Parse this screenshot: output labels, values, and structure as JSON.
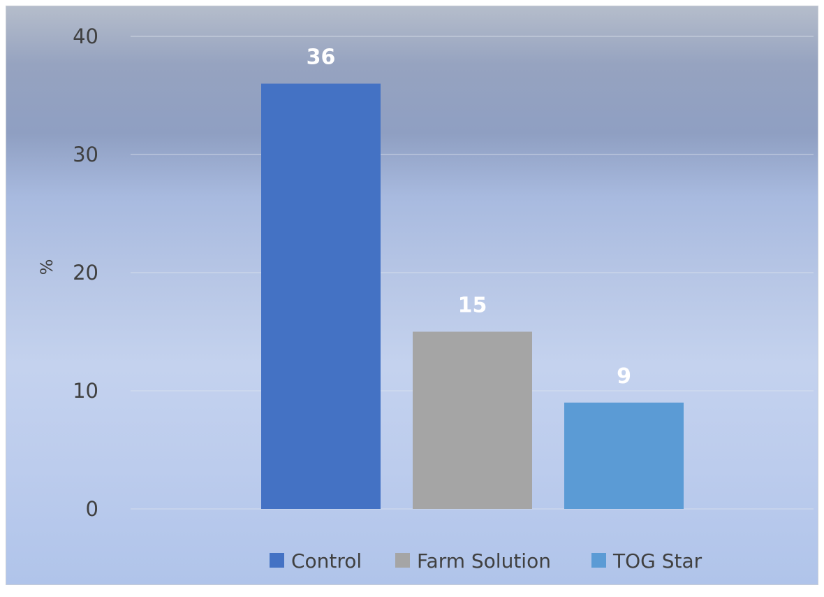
{
  "chart_data": {
    "type": "bar",
    "title": "",
    "xlabel": "",
    "ylabel": "%",
    "ylim": [
      0,
      40
    ],
    "y_ticks": [
      "0",
      "10",
      "20",
      "30",
      "40"
    ],
    "grid": true,
    "legend_position": "bottom",
    "series": [
      {
        "name": "Control",
        "value": 36,
        "label": "36",
        "color": "#4472c4"
      },
      {
        "name": "Farm Solution",
        "value": 15,
        "label": "15",
        "color": "#a5a5a5"
      },
      {
        "name": "TOG Star",
        "value": 9,
        "label": "9",
        "color": "#5b9bd5"
      }
    ]
  }
}
